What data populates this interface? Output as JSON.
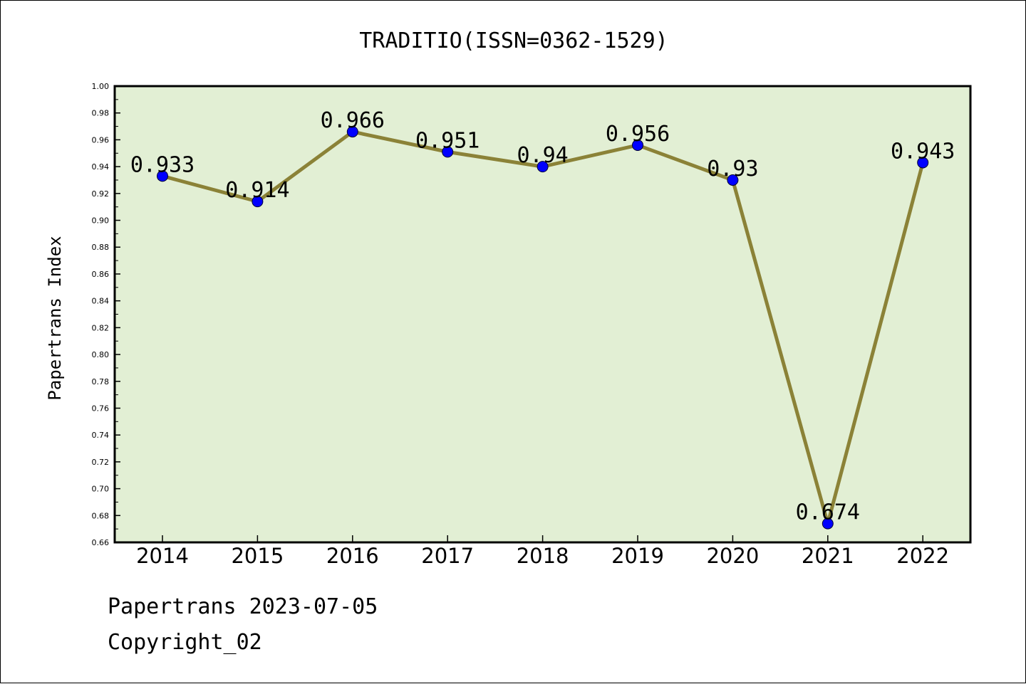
{
  "chart_data": {
    "type": "line",
    "title": "TRADITIO(ISSN=0362-1529)",
    "xlabel": "",
    "ylabel": "Papertrans Index",
    "categories": [
      "2014",
      "2015",
      "2016",
      "2017",
      "2018",
      "2019",
      "2020",
      "2021",
      "2022"
    ],
    "series": [
      {
        "values": [
          0.933,
          0.914,
          0.966,
          0.951,
          0.94,
          0.956,
          0.93,
          0.674,
          0.943
        ],
        "labels": [
          "0.933",
          "0.914",
          "0.966",
          "0.951",
          "0.94",
          "0.956",
          "0.93",
          "0.674",
          "0.943"
        ],
        "line_color": "#8b8237",
        "marker_color": "#0000ff"
      }
    ],
    "ylim": [
      0.66,
      1.0
    ],
    "yticks": [
      "0.66",
      "0.68",
      "0.70",
      "0.72",
      "0.74",
      "0.76",
      "0.78",
      "0.80",
      "0.82",
      "0.84",
      "0.86",
      "0.88",
      "0.90",
      "0.92",
      "0.94",
      "0.96",
      "0.98",
      "1.00"
    ],
    "plot_background": "#e2efd4",
    "grid": false,
    "legend": "none"
  },
  "footer": {
    "line1": "Papertrans 2023-07-05",
    "line2": "Copyright_02"
  }
}
